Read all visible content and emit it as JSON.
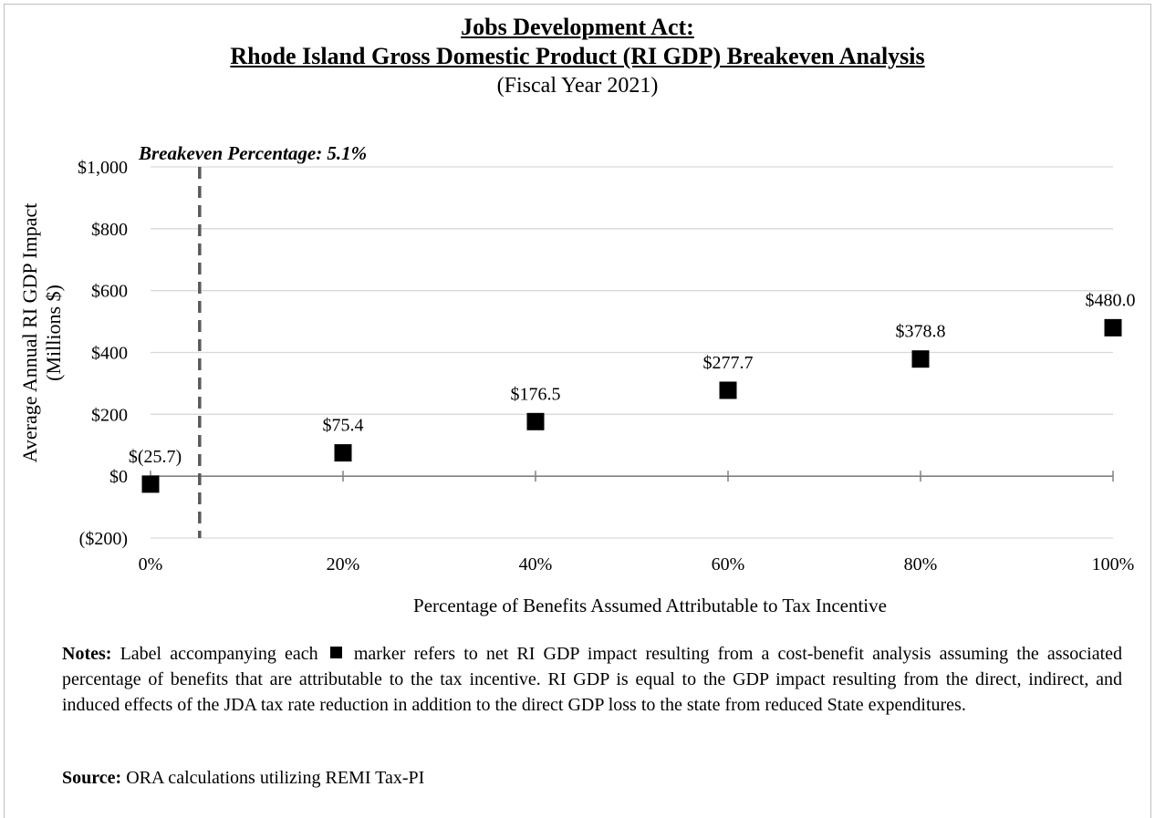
{
  "title_lines": [
    "Jobs Development Act:",
    "Rhode Island Gross Domestic Product (RI GDP) Breakeven Analysis"
  ],
  "subtitle": "(Fiscal Year 2021)",
  "notes": {
    "label": "Notes:",
    "text_before_marker": "Label accompanying each",
    "text_after_marker": "marker refers to net RI GDP impact resulting from a cost-benefit analysis assuming the associated percentage of benefits that are attributable to the tax incentive. RI GDP is equal to the GDP impact resulting from the direct, indirect, and induced effects of the JDA tax rate reduction in addition to the direct GDP loss to the state from reduced State expenditures."
  },
  "source": {
    "label": "Source:",
    "text": "ORA calculations utilizing REMI Tax-PI"
  },
  "chart_data": {
    "type": "scatter",
    "xlabel": "Percentage of Benefits Assumed Attributable to Tax Incentive",
    "ylabel_lines": [
      "Average Annual RI GDP Impact",
      "(Millions $)"
    ],
    "xlim": [
      0,
      100
    ],
    "ylim": [
      -200,
      1000
    ],
    "x_ticks": [
      0,
      20,
      40,
      60,
      80,
      100
    ],
    "x_tick_labels": [
      "0%",
      "20%",
      "40%",
      "60%",
      "80%",
      "100%"
    ],
    "y_ticks": [
      -200,
      0,
      200,
      400,
      600,
      800,
      1000
    ],
    "y_tick_labels": [
      "($200)",
      "$0",
      "$200",
      "$400",
      "$600",
      "$800",
      "$1,000"
    ],
    "grid": "horizontal",
    "marker": "square",
    "marker_color": "#000000",
    "points": [
      {
        "x": 0,
        "y": -25.7,
        "label": "$(25.7)"
      },
      {
        "x": 20,
        "y": 75.4,
        "label": "$75.4"
      },
      {
        "x": 40,
        "y": 176.5,
        "label": "$176.5"
      },
      {
        "x": 60,
        "y": 277.7,
        "label": "$277.7"
      },
      {
        "x": 80,
        "y": 378.8,
        "label": "$378.8"
      },
      {
        "x": 100,
        "y": 480.0,
        "label": "$480.0"
      }
    ],
    "breakeven": {
      "x": 5.1,
      "label": "Breakeven Percentage: 5.1%",
      "color": "#595959"
    },
    "colors": {
      "grid": "#d9d9d9",
      "axis": "#808080"
    }
  }
}
